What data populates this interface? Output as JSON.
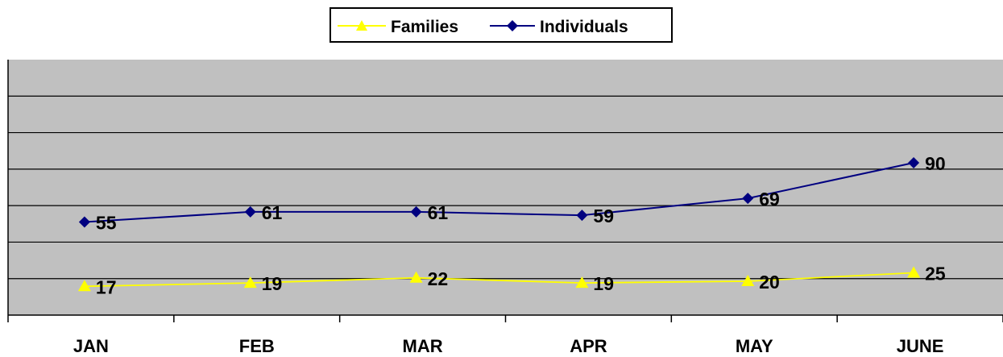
{
  "chart_data": {
    "type": "line",
    "categories": [
      "JAN",
      "FEB",
      "MAR",
      "APR",
      "MAY",
      "JUNE"
    ],
    "series": [
      {
        "name": "Families",
        "values": [
          17,
          19,
          22,
          19,
          20,
          25
        ],
        "color": "#ffff00",
        "marker": "triangle"
      },
      {
        "name": "Individuals",
        "values": [
          55,
          61,
          61,
          59,
          69,
          90
        ],
        "color": "#000080",
        "marker": "diamond"
      }
    ],
    "legend_position": "top-center",
    "grid": true,
    "plot_background": "#c0c0c0",
    "y_axis_labels_shown": false
  }
}
